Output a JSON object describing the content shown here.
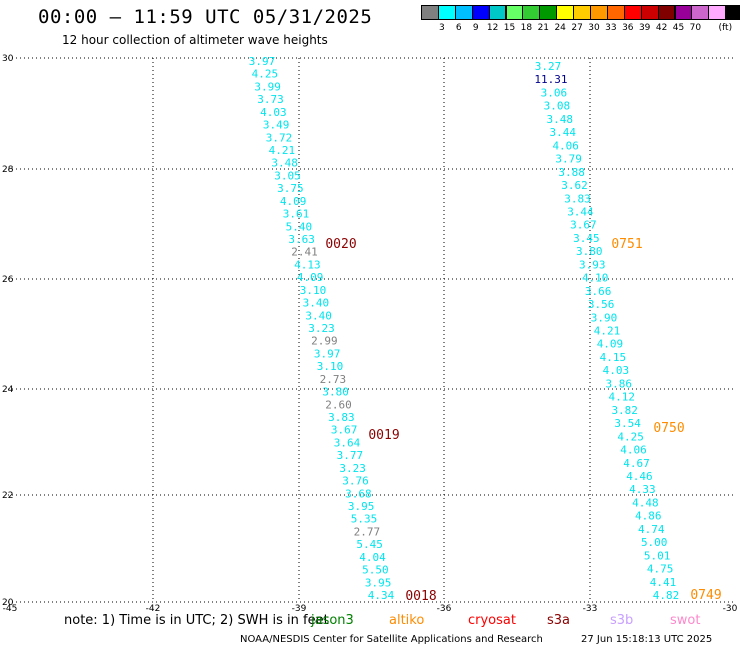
{
  "header": {
    "title": "00:00 – 11:59 UTC 05/31/2025",
    "subtitle": "12 hour collection of altimeter wave heights"
  },
  "colorbar": {
    "colors": [
      "#808080",
      "#00ffff",
      "#00bfff",
      "#0000ff",
      "#00c8c8",
      "#66ff66",
      "#33cc33",
      "#009900",
      "#ffff00",
      "#ffcc00",
      "#ff9900",
      "#ff6600",
      "#ff0000",
      "#cc0000",
      "#800000",
      "#990099",
      "#cc66cc",
      "#ffaaff",
      "#000000"
    ],
    "labels": [
      "3",
      "6",
      "9",
      "12",
      "15",
      "18",
      "21",
      "24",
      "27",
      "30",
      "33",
      "36",
      "39",
      "42",
      "45",
      "70"
    ],
    "unit": "(ft)"
  },
  "map": {
    "lon_ticks": [
      "-45",
      "-42",
      "-39",
      "-36",
      "-33",
      "-30"
    ],
    "lat_ticks": [
      "30",
      "28",
      "26",
      "24",
      "22",
      "20"
    ],
    "tracks": [
      {
        "color": "#00e5ee",
        "points": [
          [
            "3.97"
          ],
          [
            "4.25"
          ],
          [
            "3.99"
          ],
          [
            "3.73"
          ],
          [
            "4.03"
          ],
          [
            "3.49"
          ],
          [
            "3.72"
          ],
          [
            "4.21"
          ],
          [
            "3.48"
          ],
          [
            "3.05"
          ],
          [
            "3.75"
          ],
          [
            "4.09"
          ],
          [
            "3.61"
          ],
          [
            "5.40"
          ],
          [
            "3.63"
          ],
          [
            "2.41",
            "gray"
          ],
          [
            "4.13"
          ],
          [
            "4.09"
          ],
          [
            "3.10"
          ],
          [
            "3.40"
          ],
          [
            "3.40"
          ],
          [
            "3.23"
          ],
          [
            "2.99",
            "gray"
          ],
          [
            "3.97"
          ],
          [
            "3.10"
          ],
          [
            "2.73",
            "gray"
          ],
          [
            "3.80"
          ],
          [
            "2.60",
            "gray"
          ],
          [
            "3.83"
          ],
          [
            "3.67"
          ],
          [
            "3.64"
          ],
          [
            "3.77"
          ],
          [
            "3.23"
          ],
          [
            "3.76"
          ],
          [
            "3.68"
          ],
          [
            "3.95"
          ],
          [
            "5.35"
          ],
          [
            "2.77",
            "gray"
          ],
          [
            "5.45"
          ],
          [
            "4.04"
          ],
          [
            "5.50"
          ],
          [
            "3.95"
          ],
          [
            "4.34"
          ]
        ]
      },
      {
        "color": "#00e5ee",
        "points": [
          [
            "3.27"
          ],
          [
            "11.31",
            "blue"
          ],
          [
            "3.06"
          ],
          [
            "3.08"
          ],
          [
            "3.48"
          ],
          [
            "3.44"
          ],
          [
            "4.06"
          ],
          [
            "3.79"
          ],
          [
            "3.88"
          ],
          [
            "3.62"
          ],
          [
            "3.83"
          ],
          [
            "3.44"
          ],
          [
            "3.67"
          ],
          [
            "3.45"
          ],
          [
            "3.80"
          ],
          [
            "3.93"
          ],
          [
            "4.10"
          ],
          [
            "3.66"
          ],
          [
            "3.56"
          ],
          [
            "3.90"
          ],
          [
            "4.21"
          ],
          [
            "4.09"
          ],
          [
            "4.15"
          ],
          [
            "4.03"
          ],
          [
            "3.86"
          ],
          [
            "4.12"
          ],
          [
            "3.82"
          ],
          [
            "3.54"
          ],
          [
            "4.25"
          ],
          [
            "4.06"
          ],
          [
            "4.67"
          ],
          [
            "4.46"
          ],
          [
            "4.33"
          ],
          [
            "4.48"
          ],
          [
            "4.86"
          ],
          [
            "4.74"
          ],
          [
            "5.00"
          ],
          [
            "5.01"
          ],
          [
            "4.75"
          ],
          [
            "4.41"
          ],
          [
            "4.82"
          ]
        ]
      }
    ],
    "pass_labels": [
      {
        "text": "0020",
        "color": "#8b0000"
      },
      {
        "text": "0019",
        "color": "#8b0000"
      },
      {
        "text": "0018",
        "color": "#8b0000"
      },
      {
        "text": "0751",
        "color": "#ff8c00"
      },
      {
        "text": "0750",
        "color": "#ff8c00"
      },
      {
        "text": "0749",
        "color": "#ff8c00"
      }
    ]
  },
  "footer": {
    "note": "note: 1) Time is in UTC; 2) SWH is in feet",
    "legend": [
      {
        "label": "jason3",
        "color": "#008000"
      },
      {
        "label": "altiko",
        "color": "#ff8c00"
      },
      {
        "label": "cryosat",
        "color": "#ff0000"
      },
      {
        "label": "s3a",
        "color": "#8b0000"
      },
      {
        "label": "s3b",
        "color": "#c8a0ff"
      },
      {
        "label": "swot",
        "color": "#ff88cc"
      }
    ],
    "credit": "NOAA/NESDIS Center for Satellite Applications and Research",
    "timestamp": "27 Jun 15:18:13 UTC 2025"
  }
}
